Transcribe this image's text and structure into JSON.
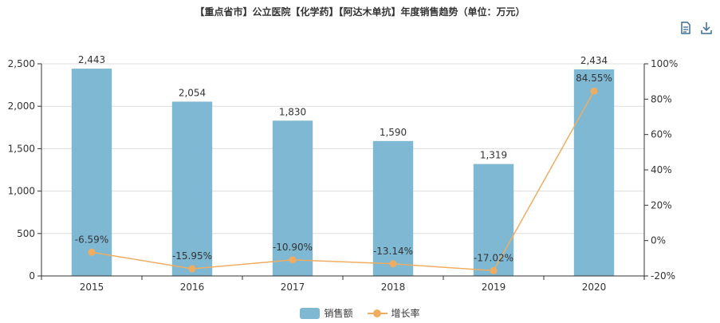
{
  "title": "【重点省市】公立医院【化学药】【阿达木单抗】年度销售趋势（单位：万元）",
  "toolbox": {
    "data_view_icon": "document-icon",
    "save_icon": "download-icon"
  },
  "colors": {
    "bar": "#7fb8d3",
    "line": "#f0ad62",
    "axis": "#333333",
    "grid": "#dddddd"
  },
  "chart_data": {
    "type": "bar",
    "categories": [
      "2015",
      "2016",
      "2017",
      "2018",
      "2019",
      "2020"
    ],
    "series": [
      {
        "name": "销售额",
        "type": "bar",
        "axis": "left",
        "values": [
          2443,
          2054,
          1830,
          1590,
          1319,
          2434
        ],
        "labels": [
          "2,443",
          "2,054",
          "1,830",
          "1,590",
          "1,319",
          "2,434"
        ]
      },
      {
        "name": "增长率",
        "type": "line",
        "axis": "right",
        "values": [
          -6.59,
          -15.95,
          -10.9,
          -13.14,
          -17.02,
          84.55
        ],
        "labels": [
          "-6.59%",
          "-15.95%",
          "-10.90%",
          "-13.14%",
          "-17.02%",
          "84.55%"
        ]
      }
    ],
    "y_left": {
      "min": 0,
      "max": 2500,
      "ticks": [
        0,
        500,
        1000,
        1500,
        2000,
        2500
      ],
      "tick_labels": [
        "0",
        "500",
        "1,000",
        "1,500",
        "2,000",
        "2,500"
      ]
    },
    "y_right": {
      "min": -20,
      "max": 100,
      "ticks": [
        -20,
        0,
        20,
        40,
        60,
        80,
        100
      ],
      "tick_labels": [
        "-20%",
        "0%",
        "20%",
        "40%",
        "60%",
        "80%",
        "100%"
      ]
    },
    "grid": true,
    "legend": {
      "position": "bottom-center",
      "items": [
        "销售额",
        "增长率"
      ]
    }
  }
}
